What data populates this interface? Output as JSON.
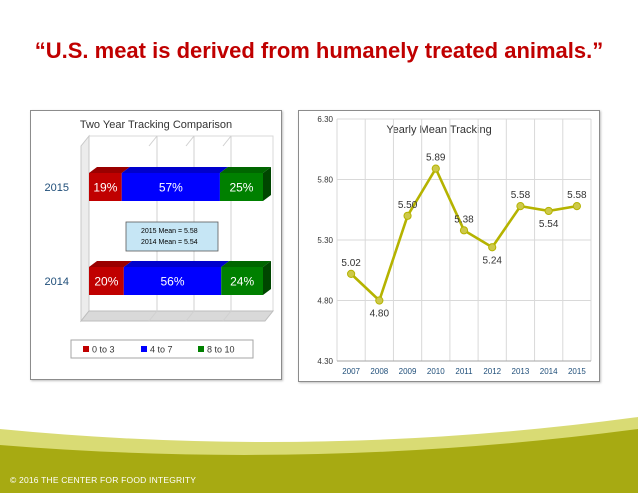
{
  "slide": {
    "title": "“U.S. meat is derived from humanely treated animals.”",
    "footer": "© 2016 THE CENTER FOR FOOD INTEGRITY"
  },
  "chart_data": [
    {
      "type": "bar",
      "stacked": true,
      "orientation": "horizontal",
      "title": "Two Year Tracking Comparison",
      "categories": [
        "2015",
        "2014"
      ],
      "series": [
        {
          "name": "0 to 3",
          "color": "#c00000",
          "values": [
            19,
            20
          ],
          "labels": [
            "19%",
            "20%"
          ]
        },
        {
          "name": "4 to 7",
          "color": "#0000ff",
          "values": [
            57,
            56
          ],
          "labels": [
            "57%",
            "56%"
          ]
        },
        {
          "name": "8 to 10",
          "color": "#008000",
          "values": [
            25,
            24
          ],
          "labels": [
            "25%",
            "24%"
          ]
        }
      ],
      "annotation": [
        "2015 Mean = 5.58",
        "2014 Mean = 5.54"
      ],
      "legend": "bottom"
    },
    {
      "type": "line",
      "title": "Yearly Mean Tracking",
      "x": [
        "2007",
        "2008",
        "2009",
        "2010",
        "2011",
        "2012",
        "2013",
        "2014",
        "2015"
      ],
      "values": [
        5.02,
        4.8,
        5.5,
        5.89,
        5.38,
        5.24,
        5.58,
        5.54,
        5.58
      ],
      "labels": [
        "5.02",
        "4.80",
        "5.50",
        "5.89",
        "5.38",
        "5.24",
        "5.58",
        "5.54",
        "5.58"
      ],
      "ylim": [
        4.3,
        6.3
      ],
      "yticks": [
        "4.30",
        "4.80",
        "5.30",
        "5.80",
        "6.30"
      ],
      "line_color": "#b5b300",
      "grid": true
    }
  ]
}
